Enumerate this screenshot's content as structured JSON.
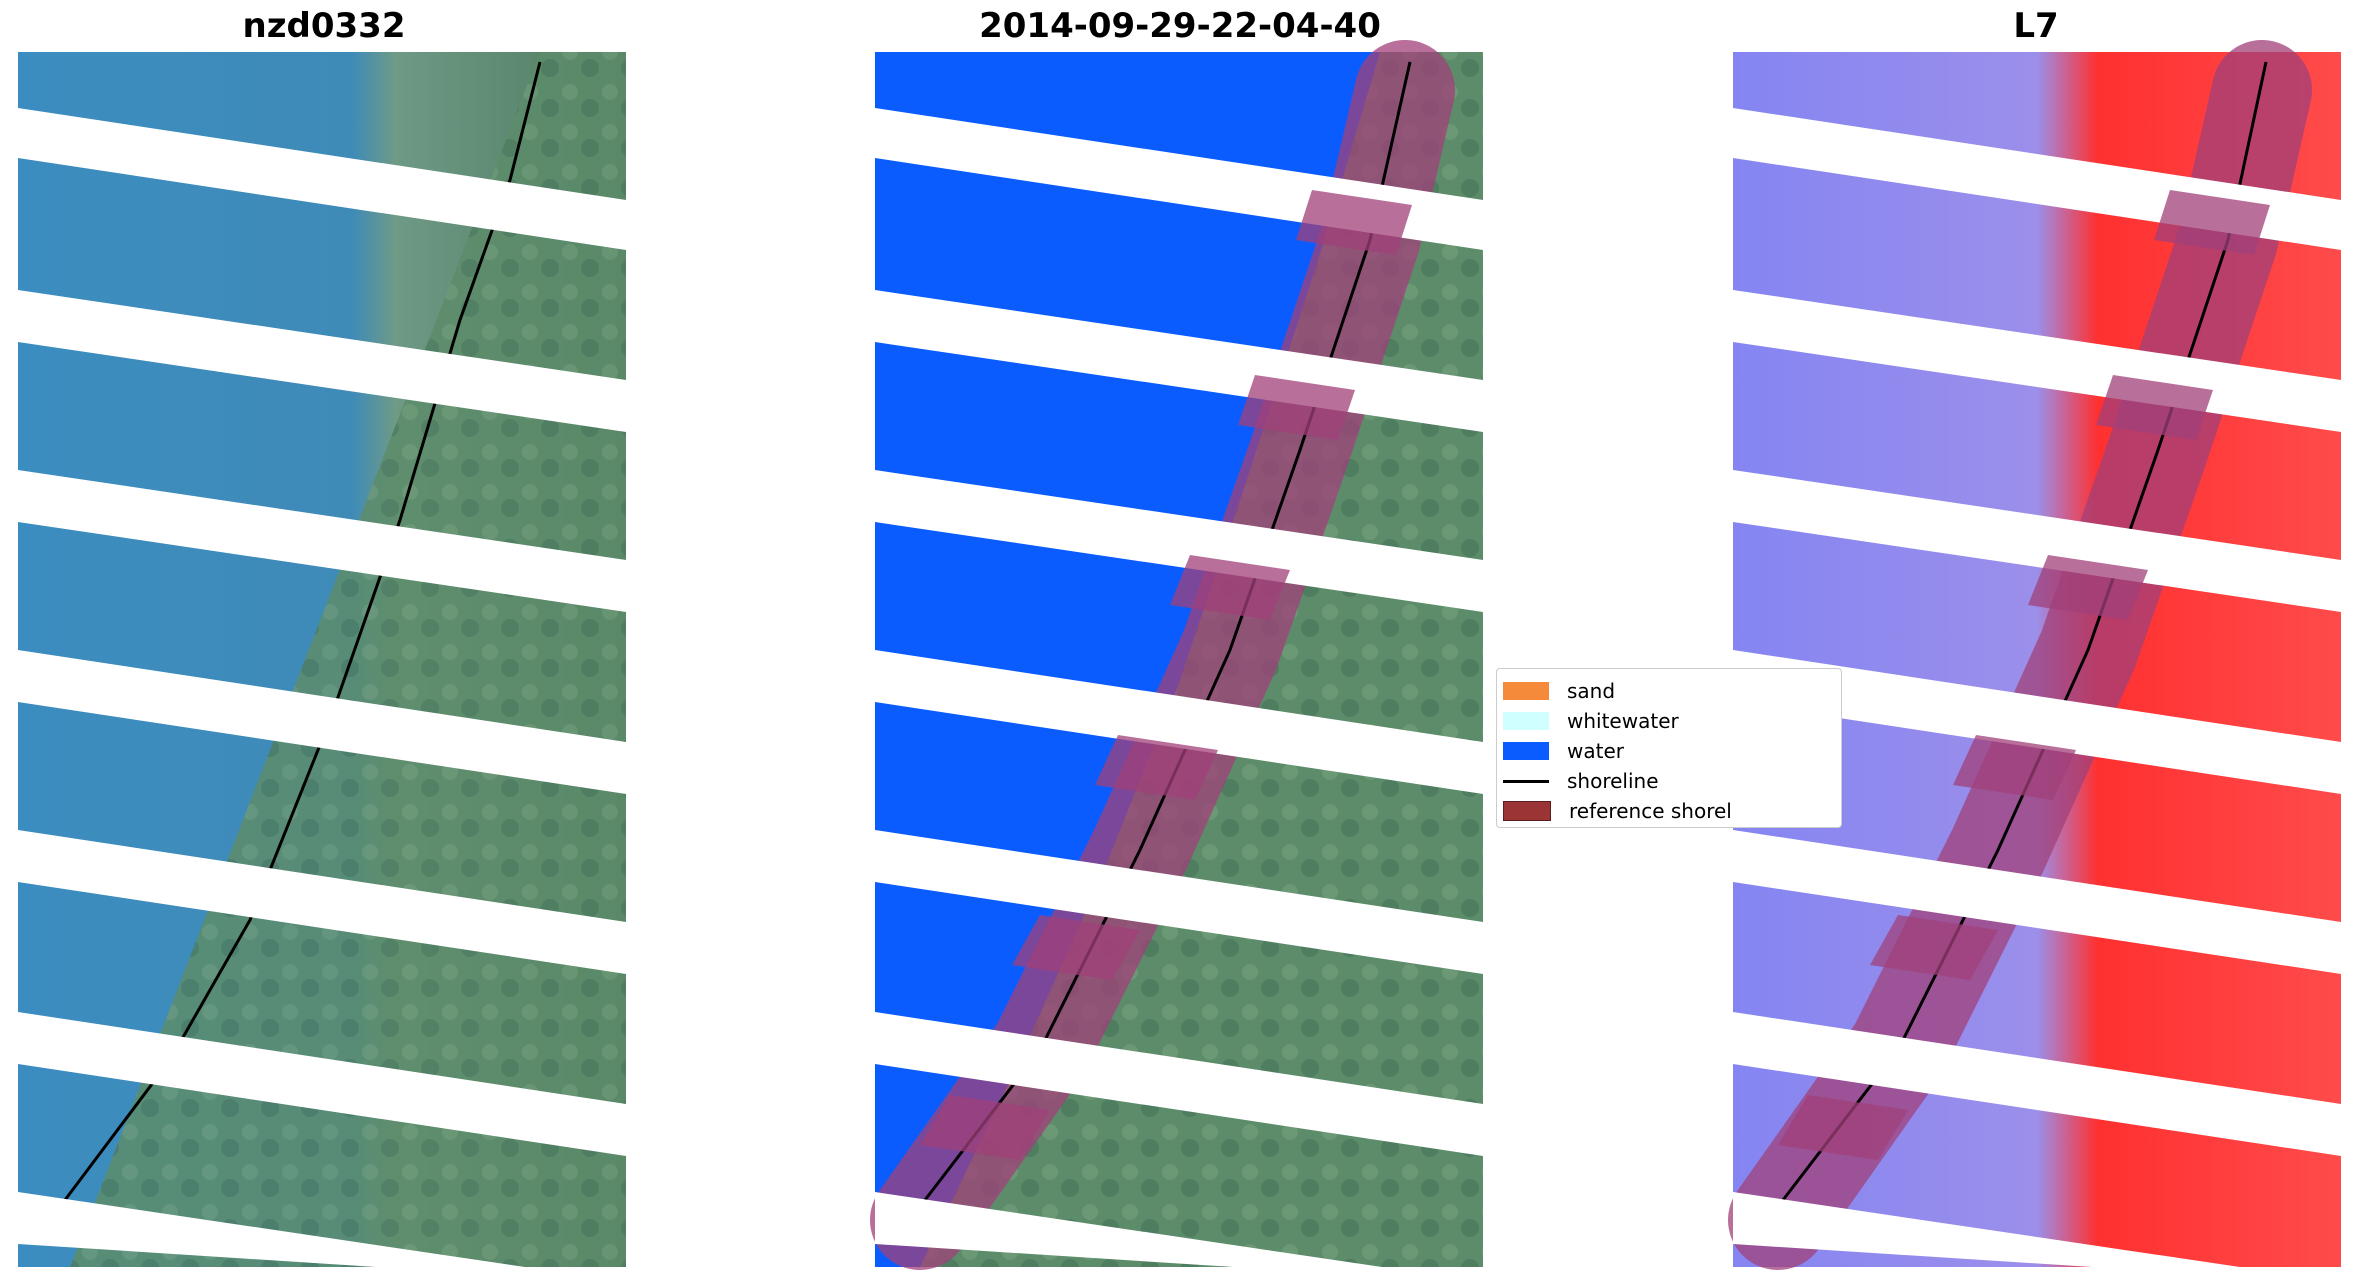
{
  "panels": [
    {
      "title": "nzd0332"
    },
    {
      "title": "2014-09-29-22-04-40"
    },
    {
      "title": "L7"
    }
  ],
  "legend": {
    "items": [
      {
        "label": "sand",
        "color": "#f58b3a",
        "kind": "patch"
      },
      {
        "label": "whitewater",
        "color": "#cfffff",
        "kind": "patch"
      },
      {
        "label": "water",
        "color": "#0a5cff",
        "kind": "patch"
      },
      {
        "label": "shoreline",
        "color": "#000000",
        "kind": "line"
      },
      {
        "label": "reference shorel",
        "color": "#9b3535",
        "kind": "patch"
      }
    ]
  },
  "colors": {
    "water_rgb": "#3d8dbd",
    "land_rgb": "#5f9070",
    "water_class": "#0a5cff",
    "index_water": "#7f7ff5",
    "index_land": "#ff2a2a",
    "buffer": "#a0407a",
    "shoreline": "#000000"
  }
}
